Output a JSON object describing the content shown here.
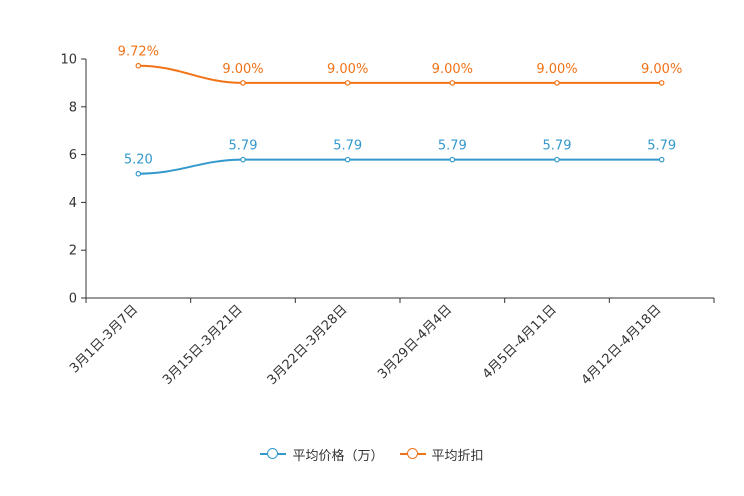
{
  "chart_data": {
    "type": "line",
    "categories": [
      "3月1日-3月7日",
      "3月15日-3月21日",
      "3月22日-3月28日",
      "3月29日-4月4日",
      "4月5日-4月11日",
      "4月12日-4月18日"
    ],
    "ylim": [
      0,
      10
    ],
    "yticks": [
      "0",
      "2",
      "4",
      "6",
      "8",
      "10"
    ],
    "series": [
      {
        "name": "平均价格（万）",
        "color": "#3398cc",
        "values": [
          5.2,
          5.79,
          5.79,
          5.79,
          5.79,
          5.79
        ],
        "labels": [
          "5.20",
          "5.79",
          "5.79",
          "5.79",
          "5.79",
          "5.79"
        ]
      },
      {
        "name": "平均折扣",
        "color": "#f07318",
        "values": [
          9.72,
          9.0,
          9.0,
          9.0,
          9.0,
          9.0
        ],
        "labels": [
          "9.72%",
          "9.00%",
          "9.00%",
          "9.00%",
          "9.00%",
          "9.00%"
        ]
      }
    ],
    "legend_position": "bottom-center"
  }
}
